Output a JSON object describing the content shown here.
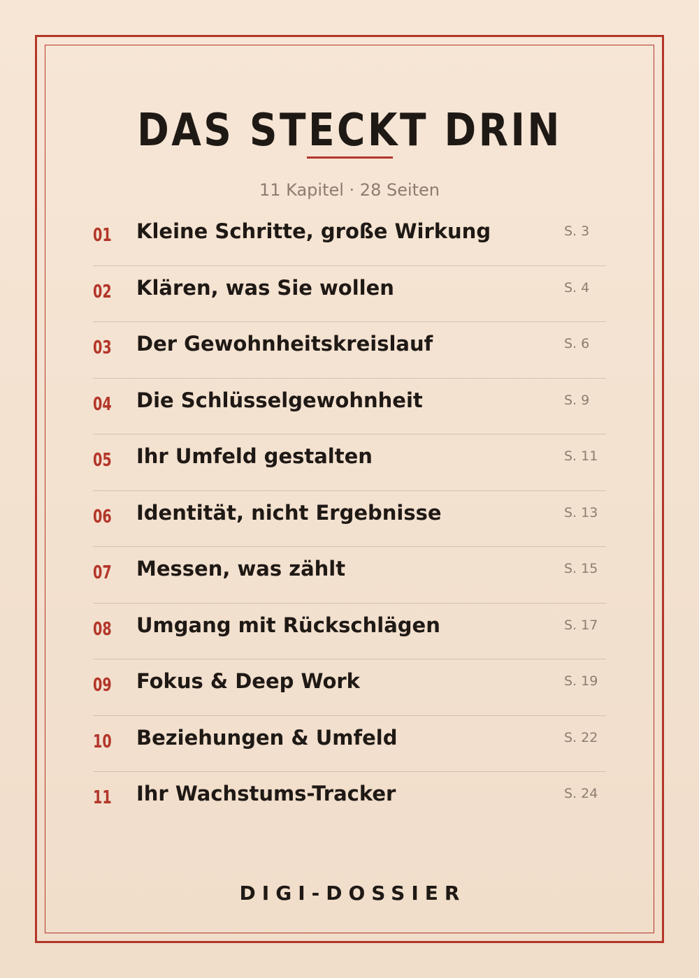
{
  "page": {
    "title": "DAS STECKT DRIN",
    "subtitle": "11 Kapitel · 28 Seiten",
    "brand": "DIGI-DOSSIER",
    "accent_color": "#b3362a"
  },
  "toc": [
    {
      "num": "01",
      "title": "Kleine Schritte, große Wirkung",
      "page": "S. 3"
    },
    {
      "num": "02",
      "title": "Klären, was Sie wollen",
      "page": "S. 4"
    },
    {
      "num": "03",
      "title": "Der Gewohnheitskreislauf",
      "page": "S. 6"
    },
    {
      "num": "04",
      "title": "Die Schlüsselgewohnheit",
      "page": "S. 9"
    },
    {
      "num": "05",
      "title": "Ihr Umfeld gestalten",
      "page": "S. 11"
    },
    {
      "num": "06",
      "title": "Identität, nicht Ergebnisse",
      "page": "S. 13"
    },
    {
      "num": "07",
      "title": "Messen, was zählt",
      "page": "S. 15"
    },
    {
      "num": "08",
      "title": "Umgang mit Rückschlägen",
      "page": "S. 17"
    },
    {
      "num": "09",
      "title": "Fokus & Deep Work",
      "page": "S. 19"
    },
    {
      "num": "10",
      "title": "Beziehungen & Umfeld",
      "page": "S. 22"
    },
    {
      "num": "11",
      "title": "Ihr Wachstums-Tracker",
      "page": "S. 24"
    }
  ]
}
